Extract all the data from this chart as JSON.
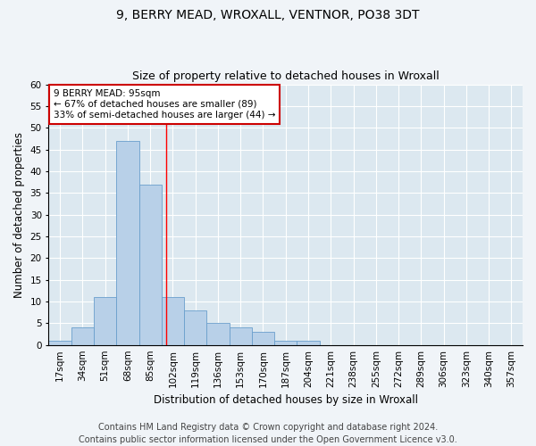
{
  "title1": "9, BERRY MEAD, WROXALL, VENTNOR, PO38 3DT",
  "title2": "Size of property relative to detached houses in Wroxall",
  "xlabel": "Distribution of detached houses by size in Wroxall",
  "ylabel": "Number of detached properties",
  "categories": [
    "17sqm",
    "34sqm",
    "51sqm",
    "68sqm",
    "85sqm",
    "102sqm",
    "119sqm",
    "136sqm",
    "153sqm",
    "170sqm",
    "187sqm",
    "204sqm",
    "221sqm",
    "238sqm",
    "255sqm",
    "272sqm",
    "289sqm",
    "306sqm",
    "323sqm",
    "340sqm",
    "357sqm"
  ],
  "values": [
    1,
    4,
    11,
    47,
    37,
    11,
    8,
    5,
    4,
    3,
    1,
    1,
    0,
    0,
    0,
    0,
    0,
    0,
    0,
    0,
    0
  ],
  "bar_color": "#b8d0e8",
  "bar_edge_color": "#6a9fcc",
  "bar_width": 1.0,
  "ylim": [
    0,
    60
  ],
  "yticks": [
    0,
    5,
    10,
    15,
    20,
    25,
    30,
    35,
    40,
    45,
    50,
    55,
    60
  ],
  "red_line_x": 4.706,
  "annotation_text": "9 BERRY MEAD: 95sqm\n← 67% of detached houses are smaller (89)\n33% of semi-detached houses are larger (44) →",
  "annotation_box_color": "#ffffff",
  "annotation_box_edge": "#cc0000",
  "footer1": "Contains HM Land Registry data © Crown copyright and database right 2024.",
  "footer2": "Contains public sector information licensed under the Open Government Licence v3.0.",
  "fig_background": "#f0f4f8",
  "plot_background": "#dce8f0",
  "title1_fontsize": 10,
  "title2_fontsize": 9,
  "axis_label_fontsize": 8.5,
  "tick_fontsize": 7.5,
  "footer_fontsize": 7
}
